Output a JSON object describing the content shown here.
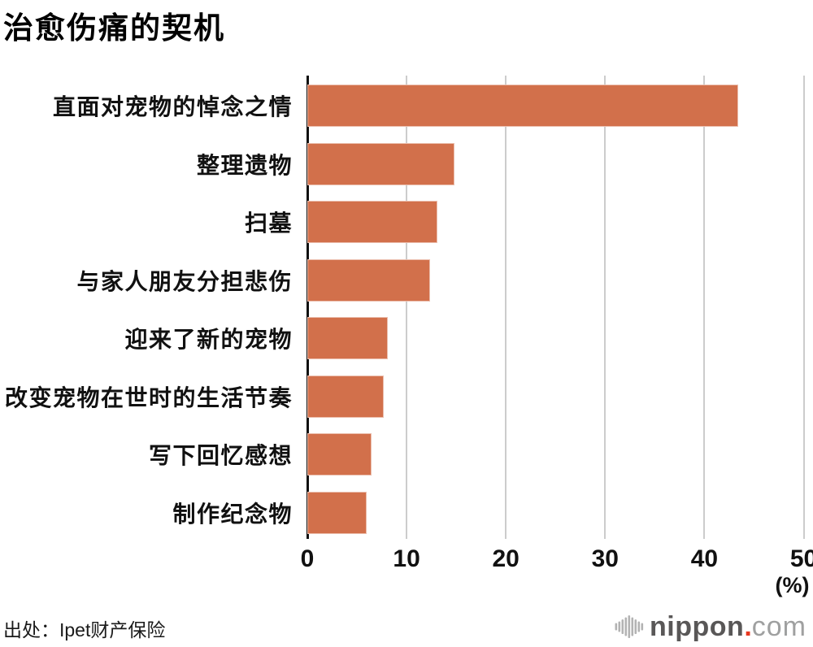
{
  "chart_data": {
    "type": "bar",
    "orientation": "horizontal",
    "title": "治愈伤痛的契机",
    "categories": [
      "直面对宠物的悼念之情",
      "整理遗物",
      "扫墓",
      "与家人朋友分担悲伤",
      "迎来了新的宠物",
      "改变宠物在世时的生活节奏",
      "写下回忆感想",
      "制作纪念物"
    ],
    "values": [
      43.4,
      14.8,
      13.1,
      12.4,
      8.1,
      7.7,
      6.5,
      6.0
    ],
    "xlim": [
      0,
      50
    ],
    "xticks": [
      0,
      10,
      20,
      30,
      40,
      50
    ],
    "unit_label": "(%)",
    "grid": true,
    "legend": "none",
    "bar_color": "#d2704b",
    "grid_color": "#cccccc",
    "axis_color": "#111111"
  },
  "source": "出处：Ipet财产保险",
  "logo": {
    "brand_bold": "nippon",
    "dot": ".",
    "brand_light": "com",
    "color_bold": "#595757",
    "color_light": "#9fa0a0",
    "dot_color": "#e83820",
    "icon_color": "#b3b3b3"
  }
}
